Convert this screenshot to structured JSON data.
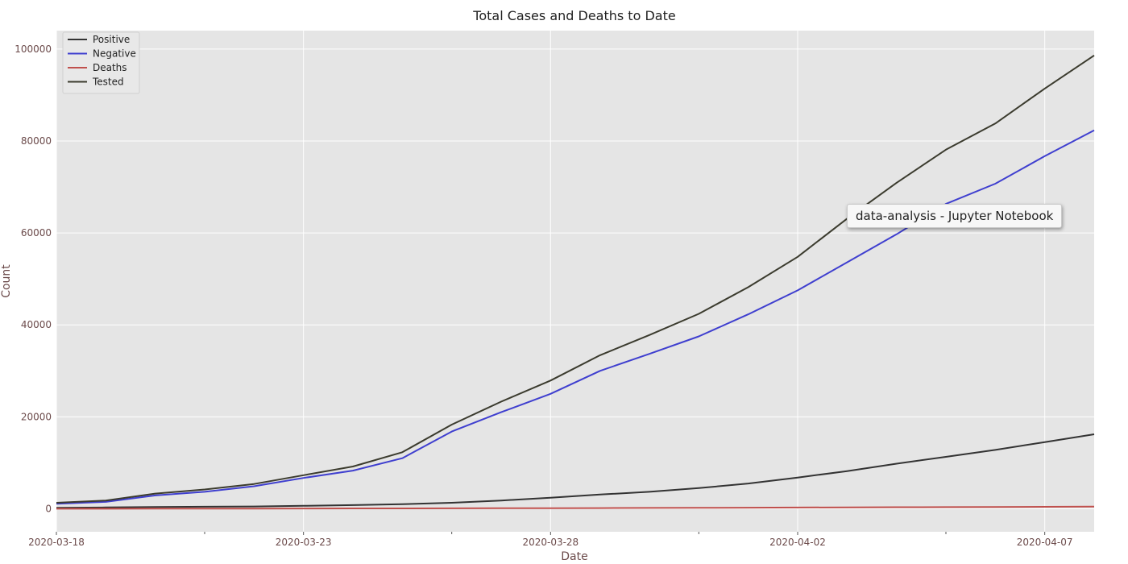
{
  "chart_data": {
    "type": "line",
    "title": "Total Cases and Deaths to Date",
    "xlabel": "Date",
    "ylabel": "Count",
    "x": [
      "2020-03-18",
      "2020-03-19",
      "2020-03-20",
      "2020-03-21",
      "2020-03-22",
      "2020-03-23",
      "2020-03-24",
      "2020-03-25",
      "2020-03-26",
      "2020-03-27",
      "2020-03-28",
      "2020-03-29",
      "2020-03-30",
      "2020-03-31",
      "2020-04-01",
      "2020-04-02",
      "2020-04-03",
      "2020-04-04",
      "2020-04-05",
      "2020-04-06",
      "2020-04-07",
      "2020-04-08"
    ],
    "xlim": [
      "2020-03-18",
      "2020-04-08"
    ],
    "ylim": [
      -5000,
      104000
    ],
    "xticks": [
      {
        "date": "2020-03-18",
        "label": "2020-03-18"
      },
      {
        "date": "2020-03-23",
        "label": "2020-03-23"
      },
      {
        "date": "2020-03-28",
        "label": "2020-03-28"
      },
      {
        "date": "2020-04-02",
        "label": "2020-04-02"
      },
      {
        "date": "2020-04-07",
        "label": "2020-04-07"
      }
    ],
    "minor_xticks": [
      "2020-03-21",
      "2020-03-26",
      "2020-03-31",
      "2020-04-05"
    ],
    "yticks": [
      0,
      20000,
      40000,
      60000,
      80000,
      100000
    ],
    "grid": true,
    "legend_position": "top-left",
    "series": [
      {
        "name": "Positive",
        "color": "#333333",
        "values": [
          200,
          300,
          400,
          450,
          500,
          650,
          800,
          1000,
          1300,
          1800,
          2400,
          3100,
          3700,
          4500,
          5500,
          6800,
          8200,
          9800,
          11300,
          12800,
          14500,
          16200
        ]
      },
      {
        "name": "Negative",
        "color": "#3f3fcf",
        "values": [
          1100,
          1500,
          2900,
          3700,
          4900,
          6700,
          8300,
          11000,
          16800,
          21000,
          25000,
          30000,
          33700,
          37500,
          42300,
          47500,
          53600,
          59700,
          66300,
          70700,
          76700,
          82300
        ]
      },
      {
        "name": "Deaths",
        "color": "#c0504d",
        "values": [
          10,
          20,
          30,
          40,
          50,
          60,
          75,
          90,
          100,
          120,
          140,
          160,
          180,
          210,
          240,
          280,
          310,
          340,
          370,
          400,
          440,
          480
        ]
      },
      {
        "name": "Tested",
        "color": "#3b3b2e",
        "values": [
          1300,
          1800,
          3300,
          4200,
          5400,
          7300,
          9200,
          12300,
          18300,
          23300,
          27900,
          33400,
          37800,
          42400,
          48200,
          54800,
          63100,
          70900,
          78100,
          83800,
          91400,
          98600
        ]
      }
    ]
  },
  "tooltip": {
    "text": "data-analysis - Jupyter Notebook"
  },
  "colors": {
    "plot_bg": "#e5e5e5",
    "grid": "#ffffff"
  }
}
